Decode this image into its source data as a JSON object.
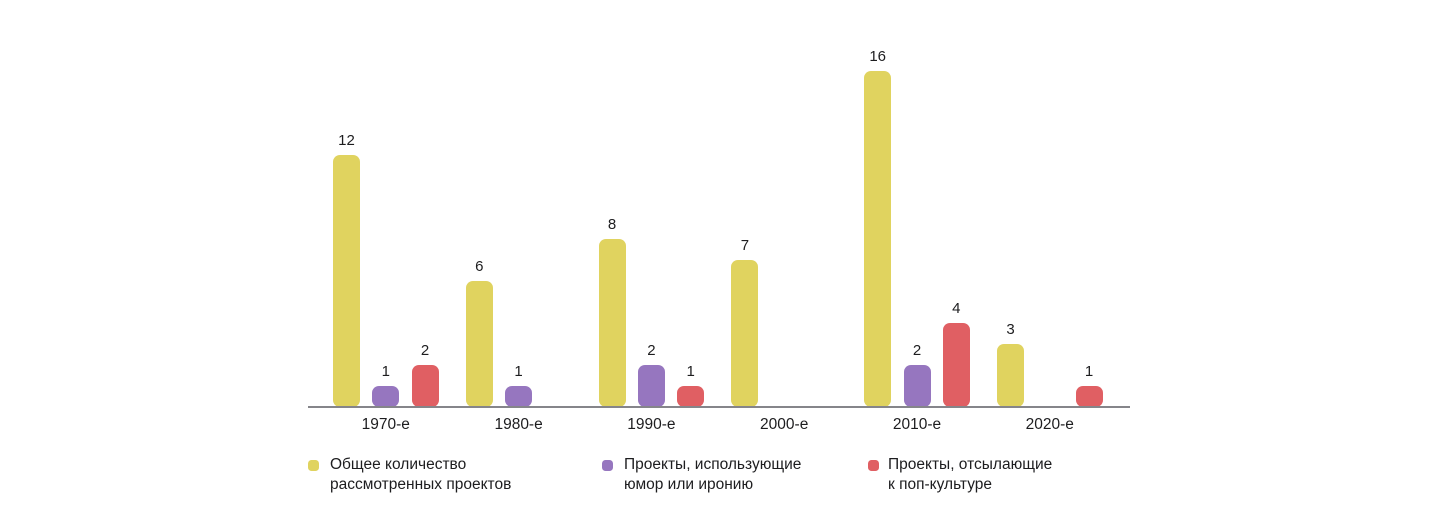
{
  "chart_data": {
    "type": "bar",
    "title": "",
    "categories": [
      "1970-е",
      "1980-е",
      "1990-е",
      "2000-е",
      "2010-е",
      "2020-е"
    ],
    "series": [
      {
        "name": "Общее количество рассмотренных проектов",
        "legend_lines": [
          "Общее количество",
          "рассмотренных проектов"
        ],
        "color": "#E0D35F",
        "values": [
          12,
          6,
          8,
          7,
          16,
          3
        ]
      },
      {
        "name": "Проекты, использующие юмор или иронию",
        "legend_lines": [
          "Проекты, использующие",
          "юмор или иронию"
        ],
        "color": "#9676BF",
        "values": [
          1,
          1,
          2,
          0,
          2,
          0
        ]
      },
      {
        "name": "Проекты, отсылающие к поп-культуре",
        "legend_lines": [
          "Проекты, отсылающие",
          "к поп-культуре"
        ],
        "color": "#E05F63",
        "values": [
          2,
          0,
          1,
          0,
          4,
          1
        ]
      }
    ],
    "ylim": [
      0,
      16
    ],
    "grid": false,
    "value_labels": true,
    "legend_position": "bottom",
    "axis_color": "#85858A",
    "text_color": "#1D1D1F",
    "background": "#FFFFFF"
  }
}
